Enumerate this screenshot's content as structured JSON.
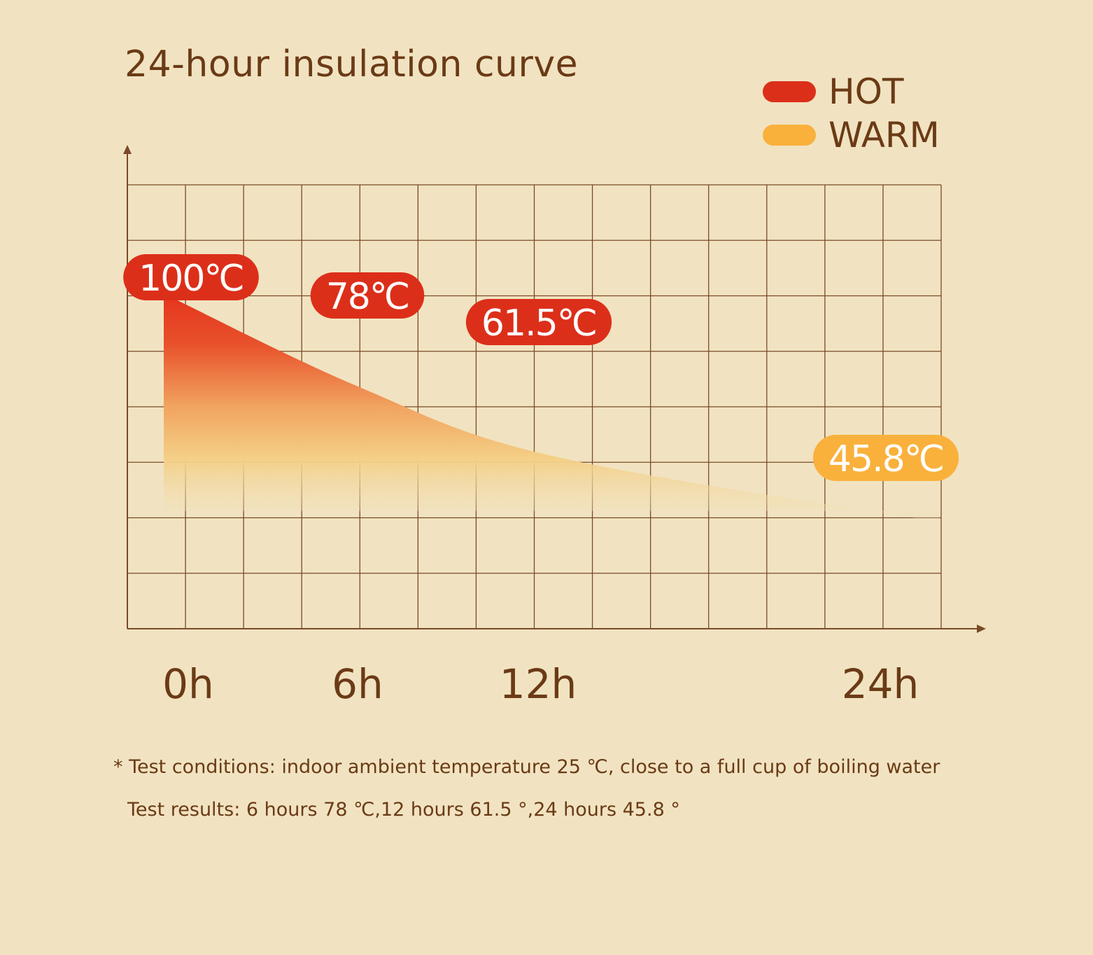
{
  "chart_data": {
    "type": "area",
    "title": "24-hour insulation curve",
    "xlabel": "",
    "ylabel": "",
    "x_ticks": [
      "0h",
      "6h",
      "12h",
      "24h"
    ],
    "x": [
      0,
      6,
      12,
      24
    ],
    "ylim": [
      0,
      160
    ],
    "grid": true,
    "legend_position": "top-right",
    "legend": [
      {
        "label": "HOT",
        "color": "#dc2f1a"
      },
      {
        "label": "WARM",
        "color": "#f9b13c"
      }
    ],
    "series": [
      {
        "values": [
          100,
          78,
          61.5,
          45.8
        ],
        "point_labels": [
          "100℃",
          "78℃",
          "61.5℃",
          "45.8℃"
        ],
        "label_colors": [
          "#dc2f1a",
          "#dc2f1a",
          "#dc2f1a",
          "#f9b13c"
        ]
      }
    ]
  },
  "notes": {
    "conditions": "* Test conditions: indoor ambient temperature 25 ℃, close to a full cup of boiling water",
    "results": "Test results: 6 hours 78 ℃,12 hours 61.5 °,24 hours 45.8 °"
  },
  "colors": {
    "background": "#f1e3c1",
    "grid": "#7a4a28",
    "text": "#6b3a16",
    "hot": "#dc2f1a",
    "warm": "#f9b13c"
  }
}
